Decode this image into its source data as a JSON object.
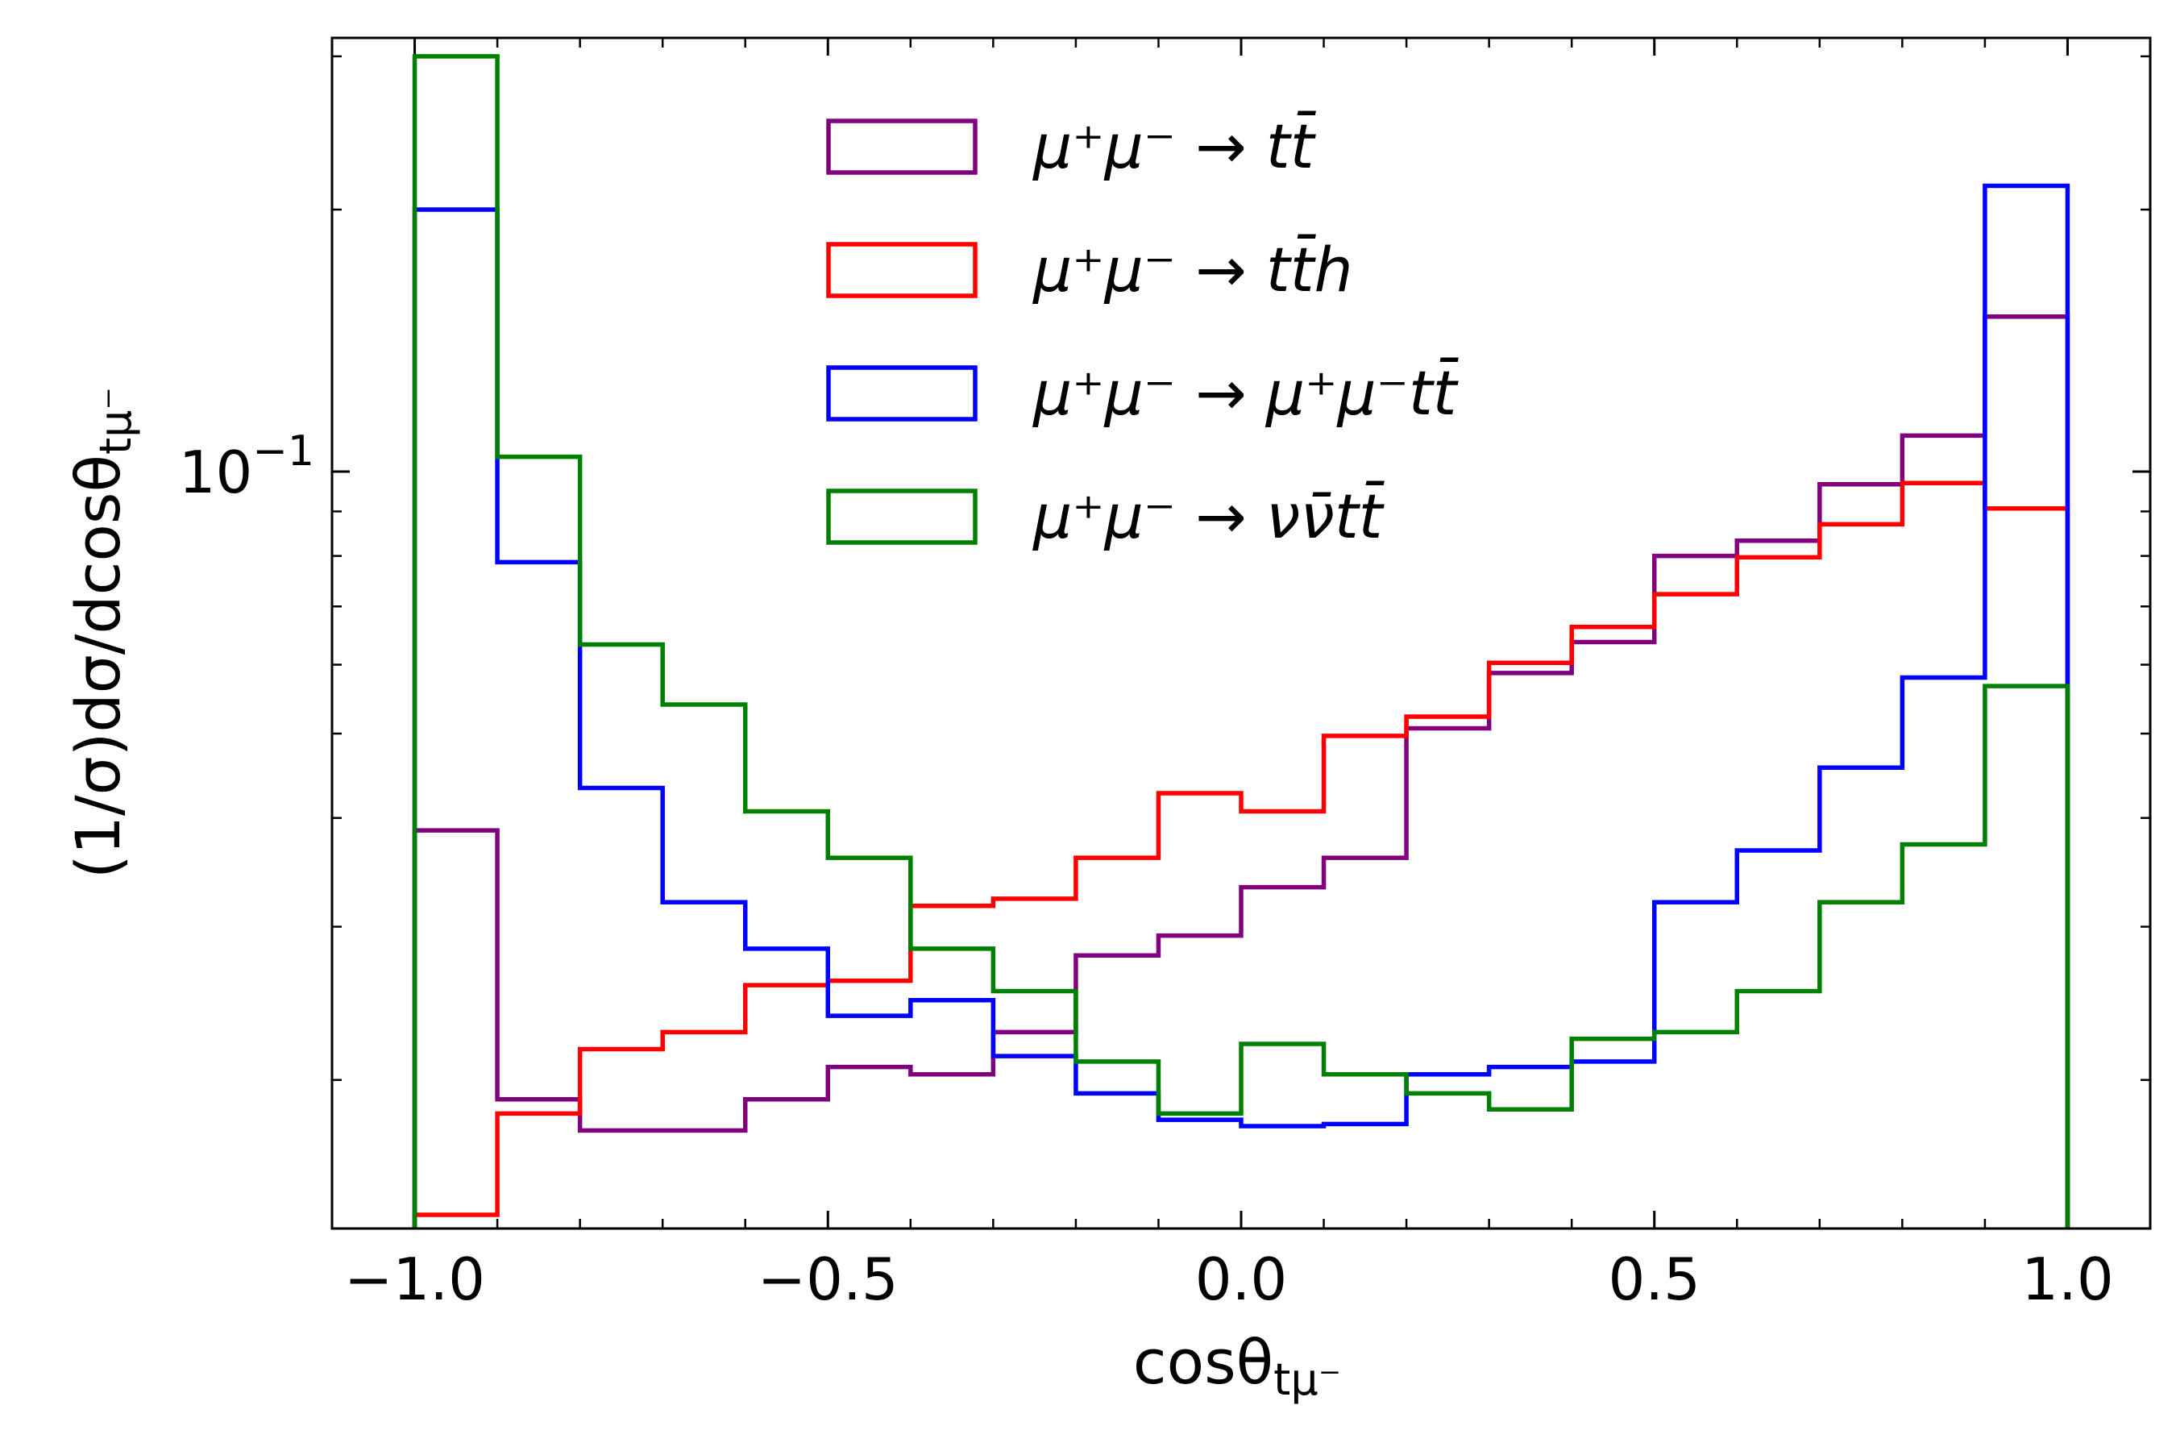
{
  "chart_data": {
    "type": "step-histogram",
    "title": "",
    "xlabel": {
      "main": "cosθ",
      "sub": "tμ⁻"
    },
    "ylabel": {
      "main": "(1/σ)dσ/dcosθ",
      "sub": "tμ⁻"
    },
    "xlim": [
      -1.1,
      1.1
    ],
    "ylim": [
      0.0135,
      0.315
    ],
    "yscale": "log",
    "grid": false,
    "legend_position": "upper-center",
    "x_ticks": [
      {
        "value": -1.0,
        "label": "−1.0"
      },
      {
        "value": -0.5,
        "label": "−0.5"
      },
      {
        "value": 0.0,
        "label": "0.0"
      },
      {
        "value": 0.5,
        "label": "0.5"
      },
      {
        "value": 1.0,
        "label": "1.0"
      }
    ],
    "y_ticks": [
      {
        "value": 0.1,
        "label_base": "10",
        "label_exp": "−1"
      }
    ],
    "bin_edges": [
      -1.0,
      -0.9,
      -0.8,
      -0.7,
      -0.6,
      -0.5,
      -0.4,
      -0.3,
      -0.2,
      -0.1,
      0.0,
      0.1,
      0.2,
      0.3,
      0.4,
      0.5,
      0.6,
      0.7,
      0.8,
      0.9,
      1.0
    ],
    "series": [
      {
        "name": "mumu_tt",
        "label": {
          "lhs": "μ⁺μ⁻",
          "rhs": "tt̄"
        },
        "color": "#800080",
        "values": [
          0.0387,
          0.019,
          0.0175,
          0.0175,
          0.019,
          0.0207,
          0.0203,
          0.0227,
          0.0278,
          0.0293,
          0.0333,
          0.036,
          0.0507,
          0.0587,
          0.0637,
          0.08,
          0.0833,
          0.0967,
          0.11,
          0.1507
        ]
      },
      {
        "name": "mumu_tth",
        "label": {
          "lhs": "μ⁺μ⁻",
          "rhs": "tt̄h"
        },
        "color": "#ff0000",
        "values": [
          0.014,
          0.0183,
          0.0217,
          0.0227,
          0.0257,
          0.026,
          0.0317,
          0.0323,
          0.036,
          0.0427,
          0.0407,
          0.0497,
          0.0523,
          0.0603,
          0.0663,
          0.0723,
          0.0797,
          0.087,
          0.097,
          0.0907
        ]
      },
      {
        "name": "mumu_mumutt",
        "label": {
          "lhs": "μ⁺μ⁻",
          "rhs": "μ⁺μ⁻tt̄"
        },
        "color": "#0000ff",
        "values": [
          0.2,
          0.0787,
          0.0433,
          0.032,
          0.0283,
          0.0237,
          0.0247,
          0.0213,
          0.0193,
          0.018,
          0.0177,
          0.0178,
          0.0203,
          0.0207,
          0.021,
          0.032,
          0.0367,
          0.0457,
          0.058,
          0.213
        ]
      },
      {
        "name": "mumu_vvtt",
        "label": {
          "lhs": "μ⁺μ⁻",
          "rhs": "νν̄tt̄"
        },
        "color": "#008000",
        "values": [
          0.3,
          0.104,
          0.0633,
          0.054,
          0.0407,
          0.036,
          0.0283,
          0.0253,
          0.021,
          0.0183,
          0.022,
          0.0203,
          0.0193,
          0.0185,
          0.0223,
          0.0227,
          0.0253,
          0.032,
          0.0373,
          0.0567
        ]
      }
    ]
  }
}
